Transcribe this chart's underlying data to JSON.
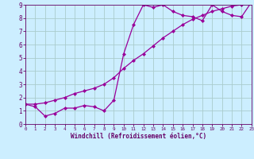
{
  "xlabel": "Windchill (Refroidissement éolien,°C)",
  "bg_color": "#cceeff",
  "grid_color": "#aacccc",
  "line_color": "#990099",
  "curve1_x": [
    0,
    1,
    2,
    3,
    4,
    5,
    6,
    7,
    8,
    9,
    10,
    11,
    12,
    13,
    14,
    15,
    16,
    17,
    18,
    19,
    20,
    21,
    22,
    23
  ],
  "curve1_y": [
    1.5,
    1.3,
    0.6,
    0.8,
    1.2,
    1.2,
    1.4,
    1.3,
    1.0,
    1.8,
    5.3,
    7.5,
    9.0,
    8.8,
    9.0,
    8.5,
    8.2,
    8.1,
    7.8,
    9.0,
    8.5,
    8.2,
    8.1,
    9.2
  ],
  "curve2_x": [
    0,
    1,
    2,
    3,
    4,
    5,
    6,
    7,
    8,
    9,
    10,
    11,
    12,
    13,
    14,
    15,
    16,
    17,
    18,
    19,
    20,
    21,
    22,
    23
  ],
  "curve2_y": [
    1.5,
    1.5,
    1.6,
    1.8,
    2.0,
    2.3,
    2.5,
    2.7,
    3.0,
    3.5,
    4.2,
    4.8,
    5.3,
    5.9,
    6.5,
    7.0,
    7.5,
    7.9,
    8.2,
    8.5,
    8.7,
    8.9,
    9.0,
    9.2
  ],
  "xlim": [
    0,
    23
  ],
  "ylim": [
    0,
    9
  ],
  "yticks": [
    0,
    1,
    2,
    3,
    4,
    5,
    6,
    7,
    8,
    9
  ],
  "xticks": [
    0,
    1,
    2,
    3,
    4,
    5,
    6,
    7,
    8,
    9,
    10,
    11,
    12,
    13,
    14,
    15,
    16,
    17,
    18,
    19,
    20,
    21,
    22,
    23
  ],
  "marker": "D",
  "marker_size": 2,
  "line_width": 0.9,
  "tick_color": "#660066",
  "label_color": "#660066",
  "xlabel_fontsize": 5.5,
  "ytick_fontsize": 5.5,
  "xtick_fontsize": 4.2
}
